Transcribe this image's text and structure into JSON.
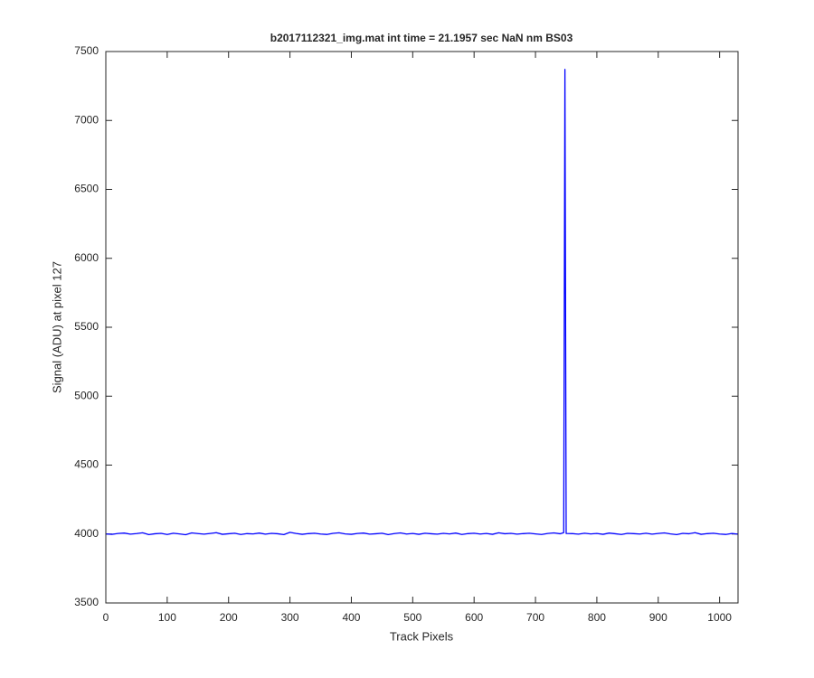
{
  "chart_data": {
    "type": "line",
    "title": "b2017112321_img.mat int time = 21.1957 sec  NaN nm BS03",
    "x_label": "Track Pixels",
    "y_label": "Signal (ADU) at pixel 127",
    "x": [
      0,
      10,
      20,
      30,
      40,
      50,
      60,
      70,
      80,
      90,
      100,
      110,
      120,
      130,
      140,
      150,
      160,
      170,
      180,
      190,
      200,
      210,
      220,
      230,
      240,
      250,
      260,
      270,
      280,
      290,
      300,
      310,
      320,
      330,
      340,
      350,
      360,
      370,
      380,
      390,
      400,
      410,
      420,
      430,
      440,
      450,
      460,
      470,
      480,
      490,
      500,
      510,
      520,
      530,
      540,
      550,
      560,
      570,
      580,
      590,
      600,
      610,
      620,
      630,
      640,
      650,
      660,
      670,
      680,
      690,
      700,
      710,
      720,
      730,
      740,
      746,
      748,
      750,
      760,
      770,
      780,
      790,
      800,
      810,
      820,
      830,
      840,
      850,
      860,
      870,
      880,
      890,
      900,
      910,
      920,
      930,
      940,
      950,
      960,
      970,
      980,
      990,
      1000,
      1010,
      1020,
      1030
    ],
    "series": [
      {
        "color": "#0000ff",
        "values": [
          4001,
          3998,
          4004,
          4007,
          3999,
          4003,
          4009,
          3996,
          4002,
          4005,
          3997,
          4006,
          4001,
          3995,
          4008,
          4003,
          3999,
          4004,
          4010,
          3998,
          4002,
          4006,
          3997,
          4003,
          4001,
          4007,
          3999,
          4005,
          4002,
          3996,
          4012,
          4004,
          3998,
          4003,
          4006,
          4000,
          3997,
          4005,
          4009,
          4001,
          3998,
          4004,
          4007,
          3999,
          4002,
          4006,
          3996,
          4003,
          4008,
          4000,
          4004,
          3998,
          4006,
          4002,
          3999,
          4005,
          4001,
          4007,
          3997,
          4003,
          4006,
          4000,
          4004,
          3998,
          4009,
          4002,
          4005,
          3999,
          4003,
          4006,
          4001,
          3997,
          4004,
          4008,
          4002,
          4010,
          7370,
          4004,
          4003,
          3999,
          4006,
          4001,
          4004,
          3998,
          4007,
          4002,
          3997,
          4005,
          4003,
          4000,
          4006,
          3999,
          4004,
          4008,
          4001,
          3996,
          4005,
          4002,
          4010,
          3998,
          4003,
          4006,
          4000,
          3997,
          4004,
          3999
        ]
      }
    ],
    "xlim": [
      0,
      1030
    ],
    "xticks": [
      0,
      100,
      200,
      300,
      400,
      500,
      600,
      700,
      800,
      900,
      1000
    ],
    "ylim": [
      3500,
      7500
    ],
    "yticks": [
      3500,
      4000,
      4500,
      5000,
      5500,
      6000,
      6500,
      7000,
      7500
    ]
  }
}
